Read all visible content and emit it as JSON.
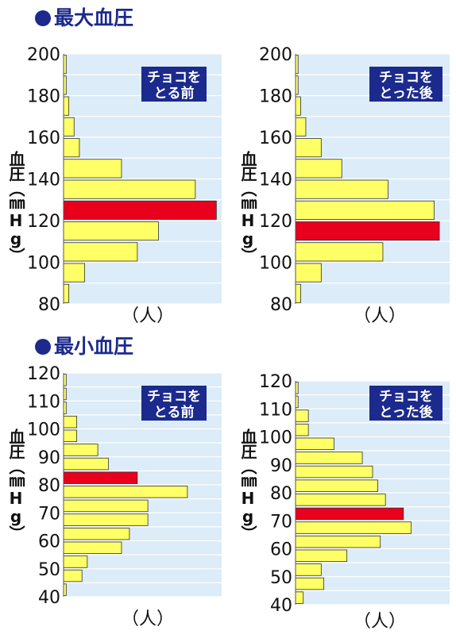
{
  "sections": {
    "systolic_title": "最大血圧",
    "diastolic_title": "最小血圧"
  },
  "axis": {
    "ylabel": "血圧（㎜Hg）",
    "xlabel": "（人）"
  },
  "colors": {
    "plot_bg": "#dcecf8",
    "grid": "#ffffff",
    "bar": "#ffff66",
    "highlight": "#e8001c",
    "bar_stroke": "#333333",
    "label_box": "#1b2a8c",
    "title": "#1b2a8c"
  },
  "chart_data": [
    {
      "type": "bar",
      "orientation": "horizontal",
      "label": "チョコを\nとる前",
      "ylim": [
        80,
        200
      ],
      "yticks": [
        80,
        100,
        120,
        140,
        160,
        180,
        200
      ],
      "bin_width": 10,
      "xlim": [
        0,
        30
      ],
      "bins": [
        80,
        90,
        100,
        110,
        120,
        130,
        140,
        150,
        160,
        170,
        180,
        190
      ],
      "values": [
        1,
        4,
        14,
        18,
        29,
        25,
        11,
        3,
        2,
        1,
        0.5,
        0.5
      ],
      "highlight_bin": 120
    },
    {
      "type": "bar",
      "orientation": "horizontal",
      "label": "チョコを\nとった後",
      "ylim": [
        80,
        200
      ],
      "yticks": [
        80,
        100,
        120,
        140,
        160,
        180,
        200
      ],
      "bin_width": 10,
      "xlim": [
        0,
        30
      ],
      "bins": [
        80,
        90,
        100,
        110,
        120,
        130,
        140,
        150,
        160,
        170,
        180,
        190
      ],
      "values": [
        1,
        5,
        17,
        28,
        27,
        18,
        9,
        5,
        2,
        1,
        0.5,
        0.5
      ],
      "highlight_bin": 110
    },
    {
      "type": "bar",
      "orientation": "horizontal",
      "label": "チョコを\nとる前",
      "ylim": [
        40,
        120
      ],
      "yticks": [
        40,
        50,
        60,
        70,
        80,
        90,
        100,
        110,
        120
      ],
      "bin_width": 5,
      "xlim": [
        0,
        30
      ],
      "bins": [
        40,
        45,
        50,
        55,
        60,
        65,
        70,
        75,
        80,
        85,
        90,
        95,
        100,
        105,
        110,
        115
      ],
      "values": [
        0.5,
        3.5,
        4.5,
        11,
        12.5,
        16,
        16,
        23.5,
        14,
        8.5,
        6.5,
        2.5,
        2.5,
        0.5,
        0.5,
        0.5
      ],
      "highlight_bin": 80
    },
    {
      "type": "bar",
      "orientation": "horizontal",
      "label": "チョコを\nとった後",
      "ylim": [
        40,
        120
      ],
      "yticks": [
        40,
        50,
        60,
        70,
        80,
        90,
        100,
        110,
        120
      ],
      "bin_width": 5,
      "xlim": [
        0,
        30
      ],
      "bins": [
        40,
        45,
        50,
        55,
        60,
        65,
        70,
        75,
        80,
        85,
        90,
        95,
        100,
        105,
        110,
        115
      ],
      "values": [
        1.5,
        5.5,
        5,
        10,
        16.5,
        22.5,
        21,
        17.5,
        16,
        15,
        13,
        7.5,
        2.5,
        2.5,
        0.5,
        0.5
      ],
      "highlight_bin": 70
    }
  ]
}
